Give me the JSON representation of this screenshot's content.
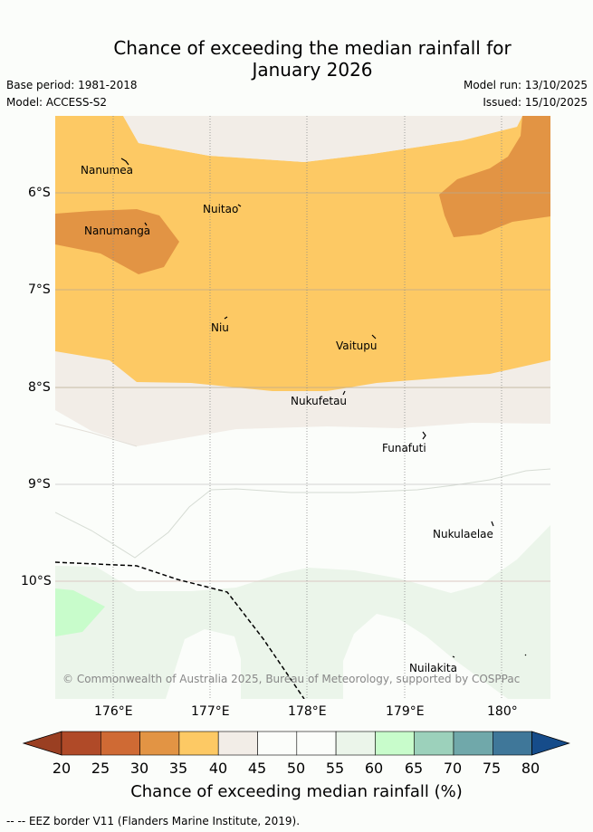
{
  "title_line1": "Chance of exceeding the median rainfall for",
  "title_line2": "January 2026",
  "base_period": "Base period: 1981-2018",
  "model": "Model: ACCESS-S2",
  "model_run": "Model run: 13/10/2025",
  "issued": "Issued: 15/10/2025",
  "places": [
    "Nanumea",
    "Nuitao",
    "Nanumanga",
    "Niu",
    "Vaitupu",
    "Nukufetau",
    "Funafuti",
    "Nukulaelae",
    "Nuilakita"
  ],
  "lat_ticks": [
    "6°S",
    "7°S",
    "8°S",
    "9°S",
    "10°S"
  ],
  "lon_ticks": [
    "176°E",
    "177°E",
    "178°E",
    "179°E",
    "180°"
  ],
  "copyright": "© Commonwealth of Australia 2025, Bureau of Meteorology, supported by COSPPac",
  "colorbar": {
    "ticks": [
      "20",
      "25",
      "30",
      "35",
      "40",
      "45",
      "50",
      "55",
      "60",
      "65",
      "70",
      "75",
      "80"
    ],
    "colors": [
      "#b04a28",
      "#cf6a34",
      "#e29444",
      "#fdc964",
      "#f2ede7",
      "#fbfdfa",
      "#fbfdfa",
      "#ebf5ea",
      "#c8fccb",
      "#9cd1bb",
      "#70a8aa",
      "#3f7799"
    ],
    "under_color": "#9a3f22",
    "over_color": "#164c8a",
    "label": "Chance of exceeding median rainfall (%)"
  },
  "eez_legend": "-- EEZ border V11 (Flanders Marine Institute, 2019)."
}
